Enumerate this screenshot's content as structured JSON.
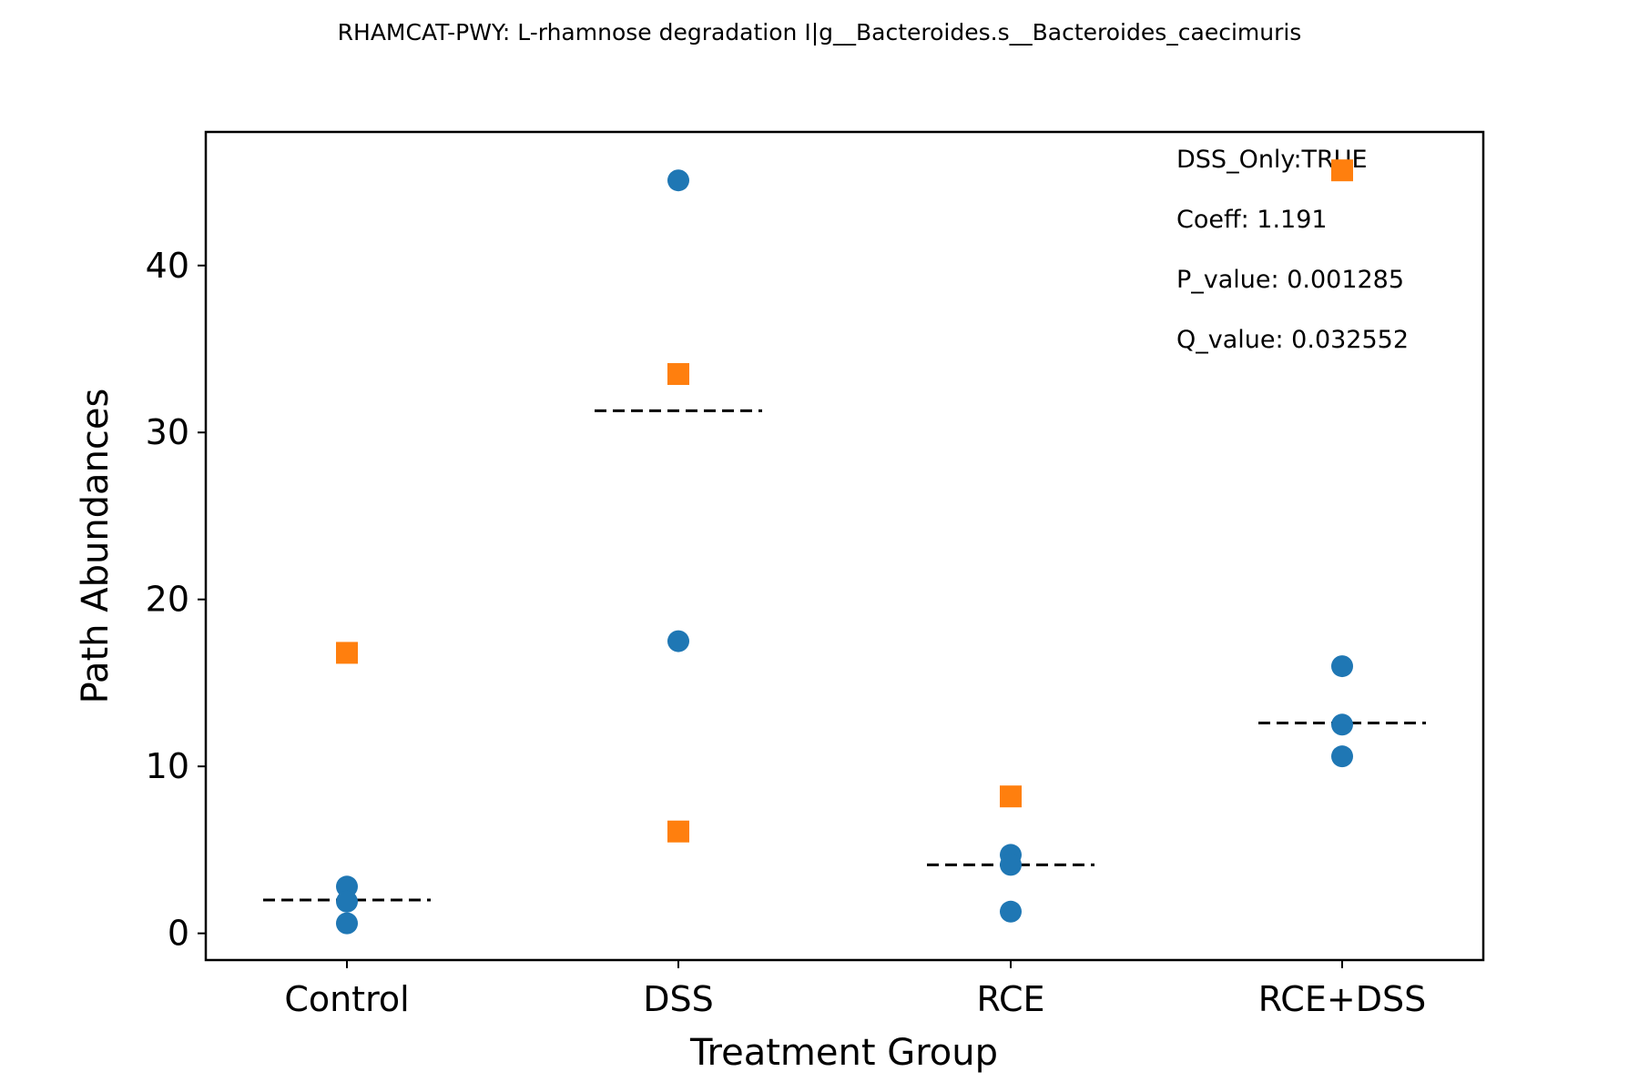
{
  "chart_data": {
    "type": "scatter",
    "title": "RHAMCAT-PWY: L-rhamnose degradation I|g__Bacteroides.s__Bacteroides_caecimuris",
    "xlabel": "Treatment Group",
    "ylabel": "Path Abundances",
    "categories": [
      "Control",
      "DSS",
      "RCE",
      "RCE+DSS"
    ],
    "ylim": [
      -1.6,
      48
    ],
    "yticks": [
      0,
      10,
      20,
      30,
      40
    ],
    "grid": false,
    "series": [
      {
        "marker": "circle",
        "color": "#1f77b4",
        "points": [
          {
            "category": "Control",
            "y": 2.8
          },
          {
            "category": "Control",
            "y": 1.9
          },
          {
            "category": "Control",
            "y": 0.6
          },
          {
            "category": "DSS",
            "y": 45.1
          },
          {
            "category": "DSS",
            "y": 17.5
          },
          {
            "category": "RCE",
            "y": 4.7
          },
          {
            "category": "RCE",
            "y": 4.1
          },
          {
            "category": "RCE",
            "y": 1.3
          },
          {
            "category": "RCE+DSS",
            "y": 16.0
          },
          {
            "category": "RCE+DSS",
            "y": 12.5
          },
          {
            "category": "RCE+DSS",
            "y": 10.6
          }
        ]
      },
      {
        "marker": "square",
        "color": "#ff7f0e",
        "points": [
          {
            "category": "Control",
            "y": 16.8
          },
          {
            "category": "DSS",
            "y": 33.5
          },
          {
            "category": "DSS",
            "y": 6.1
          },
          {
            "category": "RCE",
            "y": 8.2
          },
          {
            "category": "RCE+DSS",
            "y": 45.7
          }
        ]
      }
    ],
    "group_means": [
      {
        "category": "Control",
        "y": 2.0
      },
      {
        "category": "DSS",
        "y": 31.3
      },
      {
        "category": "RCE",
        "y": 4.1
      },
      {
        "category": "RCE+DSS",
        "y": 12.6
      }
    ],
    "annotations": [
      "DSS_Only:TRUE",
      "Coeff: 1.191",
      "P_value: 0.001285",
      "Q_value: 0.032552"
    ]
  }
}
